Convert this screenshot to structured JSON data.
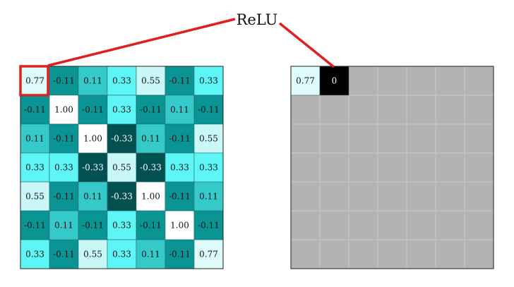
{
  "title": "ReLU",
  "colors": {
    "highlight": "#e02020",
    "output_blank": "#b3b3b3",
    "zero_cell": "#000000",
    "output_grid_line": "#cfcfcf",
    "grid_border": "#222222"
  },
  "input_matrix": [
    [
      "0.77",
      "-0.11",
      "0.11",
      "0.33",
      "0.55",
      "-0.11",
      "0.33"
    ],
    [
      "-0.11",
      "1.00",
      "-0.11",
      "0.33",
      "-0.11",
      "0.11",
      "-0.11"
    ],
    [
      "0.11",
      "-0.11",
      "1.00",
      "-0.33",
      "0.11",
      "-0.11",
      "0.55"
    ],
    [
      "0.33",
      "0.33",
      "-0.33",
      "0.55",
      "-0.33",
      "0.33",
      "0.33"
    ],
    [
      "0.55",
      "-0.11",
      "0.11",
      "-0.33",
      "1.00",
      "-0.11",
      "0.11"
    ],
    [
      "-0.11",
      "0.11",
      "-0.11",
      "0.33",
      "-0.11",
      "1.00",
      "-0.11"
    ],
    [
      "0.33",
      "-0.11",
      "0.55",
      "0.33",
      "0.11",
      "-0.11",
      "0.77"
    ]
  ],
  "output_matrix": {
    "rows": 7,
    "cols": 7,
    "filled": [
      {
        "row": 0,
        "col": 0,
        "text": "0.77"
      },
      {
        "row": 0,
        "col": 1,
        "text": "0"
      }
    ]
  }
}
